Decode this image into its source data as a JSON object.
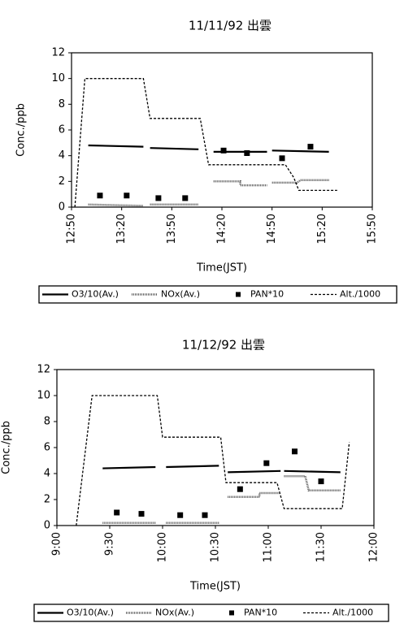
{
  "chart_data": [
    {
      "type": "line",
      "title": "11/11/92 出雲",
      "xlabel": "Time(JST)",
      "ylabel": "Conc./ppb",
      "xlim": [
        770,
        950
      ],
      "ylim": [
        0,
        12
      ],
      "xticks": [
        {
          "value": 770,
          "label": "12:50"
        },
        {
          "value": 800,
          "label": "13:20"
        },
        {
          "value": 830,
          "label": "13:50"
        },
        {
          "value": 860,
          "label": "14:20"
        },
        {
          "value": 890,
          "label": "14:50"
        },
        {
          "value": 920,
          "label": "15:20"
        },
        {
          "value": 950,
          "label": "15:50"
        }
      ],
      "yticks": [
        0,
        2,
        4,
        6,
        8,
        10,
        12
      ],
      "grid": false,
      "series": [
        {
          "name": "O3/10(Av.)",
          "style": "solid",
          "color": "#000000",
          "x": [
            780,
            813,
            813,
            817,
            846,
            846,
            855,
            887,
            887,
            890,
            924
          ],
          "values": [
            4.8,
            4.7,
            null,
            4.6,
            4.5,
            null,
            4.3,
            4.3,
            null,
            4.4,
            4.3
          ]
        },
        {
          "name": "NOx(Av.)",
          "style": "double",
          "color": "#555555",
          "x": [
            780,
            813,
            813,
            817,
            846,
            846,
            855,
            871,
            871,
            887,
            887,
            890,
            905,
            907,
            924
          ],
          "values": [
            0.2,
            0.1,
            null,
            0.2,
            0.2,
            null,
            2.0,
            2.0,
            1.7,
            1.7,
            null,
            1.9,
            1.9,
            2.1,
            2.1
          ]
        },
        {
          "name": "PAN*10",
          "style": "marker",
          "color": "#000000",
          "x": [
            787,
            803,
            822,
            838,
            861,
            875,
            896,
            913
          ],
          "values": [
            0.9,
            0.9,
            0.7,
            0.7,
            4.4,
            4.2,
            3.8,
            4.7
          ]
        },
        {
          "name": "Alt./1000",
          "style": "dashed",
          "color": "#000000",
          "x": [
            772,
            778,
            813,
            817,
            847,
            852,
            898,
            903,
            906,
            929
          ],
          "values": [
            0,
            10,
            10,
            6.9,
            6.9,
            3.3,
            3.3,
            2.3,
            1.3,
            1.3
          ]
        }
      ]
    },
    {
      "type": "line",
      "title": "11/12/92 出雲",
      "xlabel": "Time(JST)",
      "ylabel": "Conc./ppb",
      "xlim": [
        540,
        720
      ],
      "ylim": [
        0,
        12
      ],
      "xticks": [
        {
          "value": 540,
          "label": "9:00"
        },
        {
          "value": 570,
          "label": "9:30"
        },
        {
          "value": 600,
          "label": "10:00"
        },
        {
          "value": 630,
          "label": "10:30"
        },
        {
          "value": 660,
          "label": "11:00"
        },
        {
          "value": 690,
          "label": "11:30"
        },
        {
          "value": 720,
          "label": "12:00"
        }
      ],
      "yticks": [
        0,
        2,
        4,
        6,
        8,
        10,
        12
      ],
      "grid": false,
      "series": [
        {
          "name": "O3/10(Av.)",
          "style": "solid",
          "color": "#000000",
          "x": [
            566,
            596,
            596,
            602,
            632,
            632,
            637,
            667,
            667,
            669,
            701
          ],
          "values": [
            4.4,
            4.5,
            null,
            4.5,
            4.6,
            null,
            4.1,
            4.2,
            null,
            4.2,
            4.1
          ]
        },
        {
          "name": "NOx(Av.)",
          "style": "double",
          "color": "#555555",
          "x": [
            566,
            596,
            596,
            602,
            632,
            632,
            637,
            655,
            655,
            667,
            667,
            669,
            681,
            683,
            701
          ],
          "values": [
            0.2,
            0.2,
            null,
            0.2,
            0.2,
            null,
            2.2,
            2.2,
            2.5,
            2.5,
            null,
            3.8,
            3.8,
            2.7,
            2.7
          ]
        },
        {
          "name": "PAN*10",
          "style": "marker",
          "color": "#000000",
          "x": [
            574,
            588,
            610,
            624,
            644,
            659,
            675,
            690
          ],
          "values": [
            1.0,
            0.9,
            0.8,
            0.8,
            2.8,
            4.8,
            5.7,
            3.4
          ]
        },
        {
          "name": "Alt./1000",
          "style": "dashed",
          "color": "#000000",
          "x": [
            551,
            560,
            597,
            600,
            633,
            636,
            665,
            669,
            702,
            706
          ],
          "values": [
            0,
            10,
            10,
            6.8,
            6.8,
            3.3,
            3.3,
            1.3,
            1.3,
            6.4
          ]
        }
      ]
    }
  ]
}
